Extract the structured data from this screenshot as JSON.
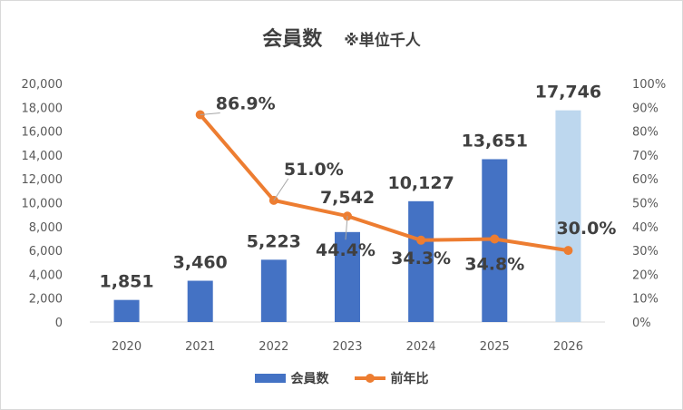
{
  "chart_data": {
    "type": "bar",
    "title": "会員数",
    "subtitle": "※単位千人",
    "categories": [
      "2020",
      "2021",
      "2022",
      "2023",
      "2024",
      "2025",
      "2026"
    ],
    "y_left": {
      "range": [
        0,
        20000
      ],
      "ticks": [
        "0",
        "2,000",
        "4,000",
        "6,000",
        "8,000",
        "10,000",
        "12,000",
        "14,000",
        "16,000",
        "18,000",
        "20,000"
      ]
    },
    "y_right": {
      "range": [
        0,
        100
      ],
      "ticks": [
        "0%",
        "10%",
        "20%",
        "30%",
        "40%",
        "50%",
        "60%",
        "70%",
        "80%",
        "90%",
        "100%"
      ]
    },
    "series": [
      {
        "name": "会員数",
        "type": "bar",
        "axis": "left",
        "values": [
          1851,
          3460,
          5223,
          7542,
          10127,
          13651,
          17746
        ],
        "labels": [
          "1,851",
          "3,460",
          "5,223",
          "7,542",
          "10,127",
          "13,651",
          "17,746"
        ],
        "color": "#4472c4",
        "highlight_color": "#bdd7ee",
        "highlight_index": 6
      },
      {
        "name": "前年比",
        "type": "line",
        "axis": "right",
        "values": [
          null,
          86.9,
          51.0,
          44.4,
          34.3,
          34.8,
          30.0
        ],
        "labels": [
          "",
          "86.9%",
          "51.0%",
          "44.4%",
          "34.3%",
          "34.8%",
          "30.0%"
        ],
        "color": "#ed7d31"
      }
    ],
    "grid": false,
    "legend": "bottom"
  },
  "colors": {
    "axis_text": "#595959",
    "axis_line": "#d9d9d9",
    "label_text": "#404040",
    "bar": "#4472c4",
    "bar_highlight": "#bdd7ee",
    "line": "#ed7d31"
  }
}
